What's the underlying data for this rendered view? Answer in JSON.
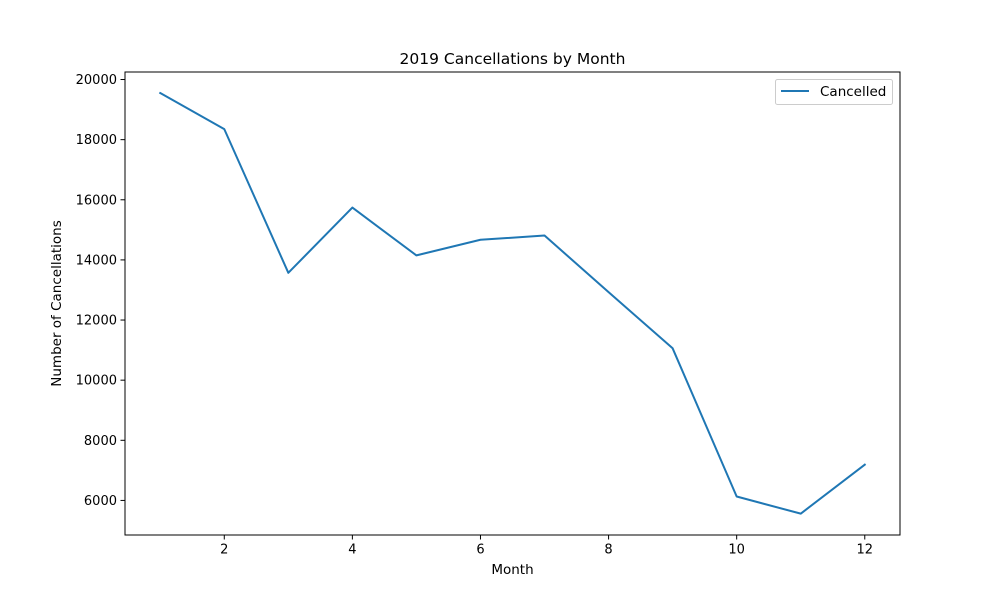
{
  "chart_data": {
    "type": "line",
    "title": "2019 Cancellations by Month",
    "xlabel": "Month",
    "ylabel": "Number of Cancellations",
    "x": [
      1,
      2,
      3,
      4,
      5,
      6,
      7,
      8,
      9,
      10,
      11,
      12
    ],
    "series": [
      {
        "name": "Cancelled",
        "color": "#1f77b4",
        "values": [
          19550,
          18350,
          13570,
          15740,
          14150,
          14670,
          14810,
          12930,
          11060,
          6130,
          5560,
          7190
        ]
      }
    ],
    "xlim": [
      0.45,
      12.55
    ],
    "ylim": [
      4850,
      20250
    ],
    "xticks": [
      2,
      4,
      6,
      8,
      10,
      12
    ],
    "xtick_labels": [
      "2",
      "4",
      "6",
      "8",
      "10",
      "12"
    ],
    "yticks": [
      6000,
      8000,
      10000,
      12000,
      14000,
      16000,
      18000,
      20000
    ],
    "ytick_labels": [
      "6000",
      "8000",
      "10000",
      "12000",
      "14000",
      "16000",
      "18000",
      "20000"
    ],
    "grid": false,
    "legend_position": "top-right"
  }
}
